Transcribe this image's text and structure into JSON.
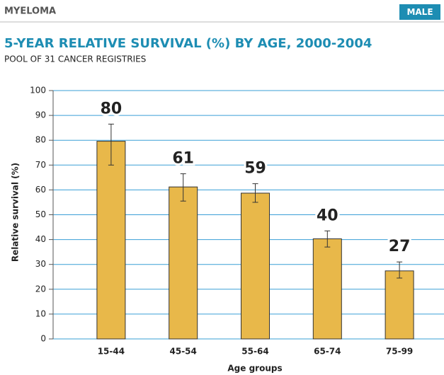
{
  "chart_data": {
    "type": "bar",
    "header": "MYELOMA",
    "badge": "MALE",
    "title": "5-YEAR RELATIVE SURVIVAL (%) BY AGE, 2000-2004",
    "subtitle": "POOL OF 31 CANCER REGISTRIES",
    "xlabel": "Age groups",
    "ylabel": "Relative survival (%)",
    "categories": [
      "15-44",
      "45-54",
      "55-64",
      "65-74",
      "75-99"
    ],
    "values": [
      79.6,
      61.2,
      58.7,
      40.3,
      27.4
    ],
    "value_labels": [
      "80",
      "61",
      "59",
      "40",
      "27"
    ],
    "ci_lower": [
      70,
      55.5,
      55,
      37,
      24.5
    ],
    "ci_upper": [
      86.5,
      66.5,
      62.5,
      43.5,
      31
    ],
    "color": "#e8b84a",
    "grid_color": "#3a9fd6",
    "ylim": [
      0,
      100
    ],
    "yticks": [
      0,
      10,
      20,
      30,
      40,
      50,
      60,
      70,
      80,
      90,
      100
    ],
    "grid": true
  }
}
